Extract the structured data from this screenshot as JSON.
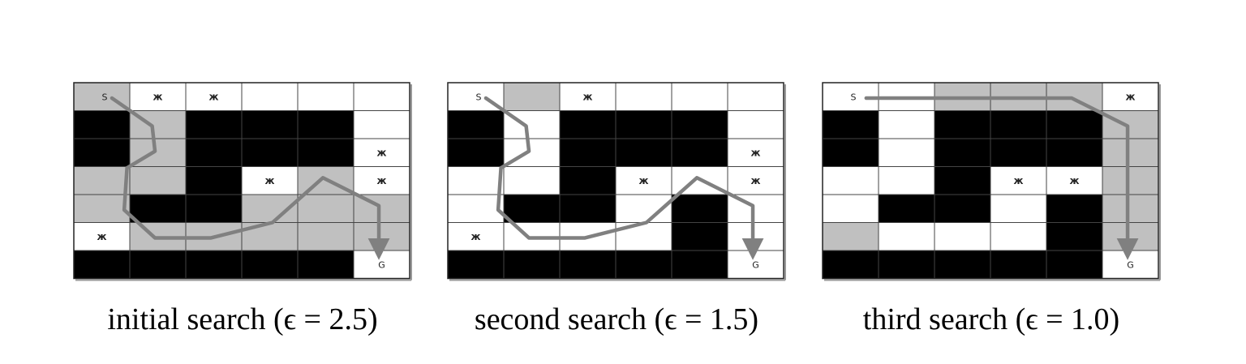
{
  "colors": {
    "obstacle": "#000000",
    "expanded": "#c0c0c0",
    "free": "#ffffff",
    "path": "#808080",
    "grid": "#444444"
  },
  "grid": {
    "rows": 7,
    "cols": 6
  },
  "panels": [
    {
      "caption": "initial search (ϵ = 2.5)",
      "start_label": "S",
      "goal_label": "G",
      "mark_label": "ж",
      "cells": [
        "gwwwww",
        "bgbbbw",
        "bgbbbw",
        "ggbwgw",
        "gbbggg",
        "wggggg",
        "bbbbbw"
      ],
      "marks": [
        [
          0,
          1
        ],
        [
          0,
          2
        ],
        [
          2,
          5
        ],
        [
          3,
          3
        ],
        [
          3,
          5
        ],
        [
          5,
          0
        ]
      ],
      "start": [
        0,
        0
      ],
      "goal": [
        6,
        5
      ],
      "path": [
        [
          0.68,
          0.55
        ],
        [
          1.4,
          1.55
        ],
        [
          1.45,
          2.45
        ],
        [
          0.95,
          3.05
        ],
        [
          0.9,
          4.55
        ],
        [
          1.45,
          5.55
        ],
        [
          2.45,
          5.55
        ],
        [
          3.55,
          5.0
        ],
        [
          4.45,
          3.4
        ],
        [
          5.45,
          4.4
        ],
        [
          5.45,
          5.95
        ]
      ]
    },
    {
      "caption": "second search (ϵ = 1.5)",
      "start_label": "S",
      "goal_label": "G",
      "mark_label": "ж",
      "cells": [
        "wgwwww",
        "bwbbbw",
        "bwbbbw",
        "wwbwww",
        "wbbwbw",
        "wwwwbw",
        "bbbbbw"
      ],
      "marks": [
        [
          0,
          2
        ],
        [
          2,
          5
        ],
        [
          3,
          3
        ],
        [
          3,
          5
        ],
        [
          5,
          0
        ]
      ],
      "start": [
        0,
        0
      ],
      "goal": [
        6,
        5
      ],
      "path": [
        [
          0.68,
          0.55
        ],
        [
          1.4,
          1.55
        ],
        [
          1.45,
          2.45
        ],
        [
          0.95,
          3.05
        ],
        [
          0.9,
          4.55
        ],
        [
          1.45,
          5.55
        ],
        [
          2.45,
          5.55
        ],
        [
          3.55,
          5.0
        ],
        [
          4.45,
          3.4
        ],
        [
          5.45,
          4.4
        ],
        [
          5.45,
          5.95
        ]
      ]
    },
    {
      "caption": "third search (ϵ = 1.0)",
      "start_label": "S",
      "goal_label": "G",
      "mark_label": "ж",
      "cells": [
        "wwgggw",
        "bwbbbg",
        "bwbbbg",
        "wwbwwg",
        "wbbwbg",
        "gwwwbg",
        "bbbbbw"
      ],
      "marks": [
        [
          0,
          5
        ],
        [
          3,
          3
        ],
        [
          3,
          4
        ]
      ],
      "start": [
        0,
        0
      ],
      "goal": [
        6,
        5
      ],
      "path": [
        [
          0.78,
          0.55
        ],
        [
          4.45,
          0.55
        ],
        [
          5.45,
          1.55
        ],
        [
          5.45,
          5.95
        ]
      ]
    }
  ]
}
